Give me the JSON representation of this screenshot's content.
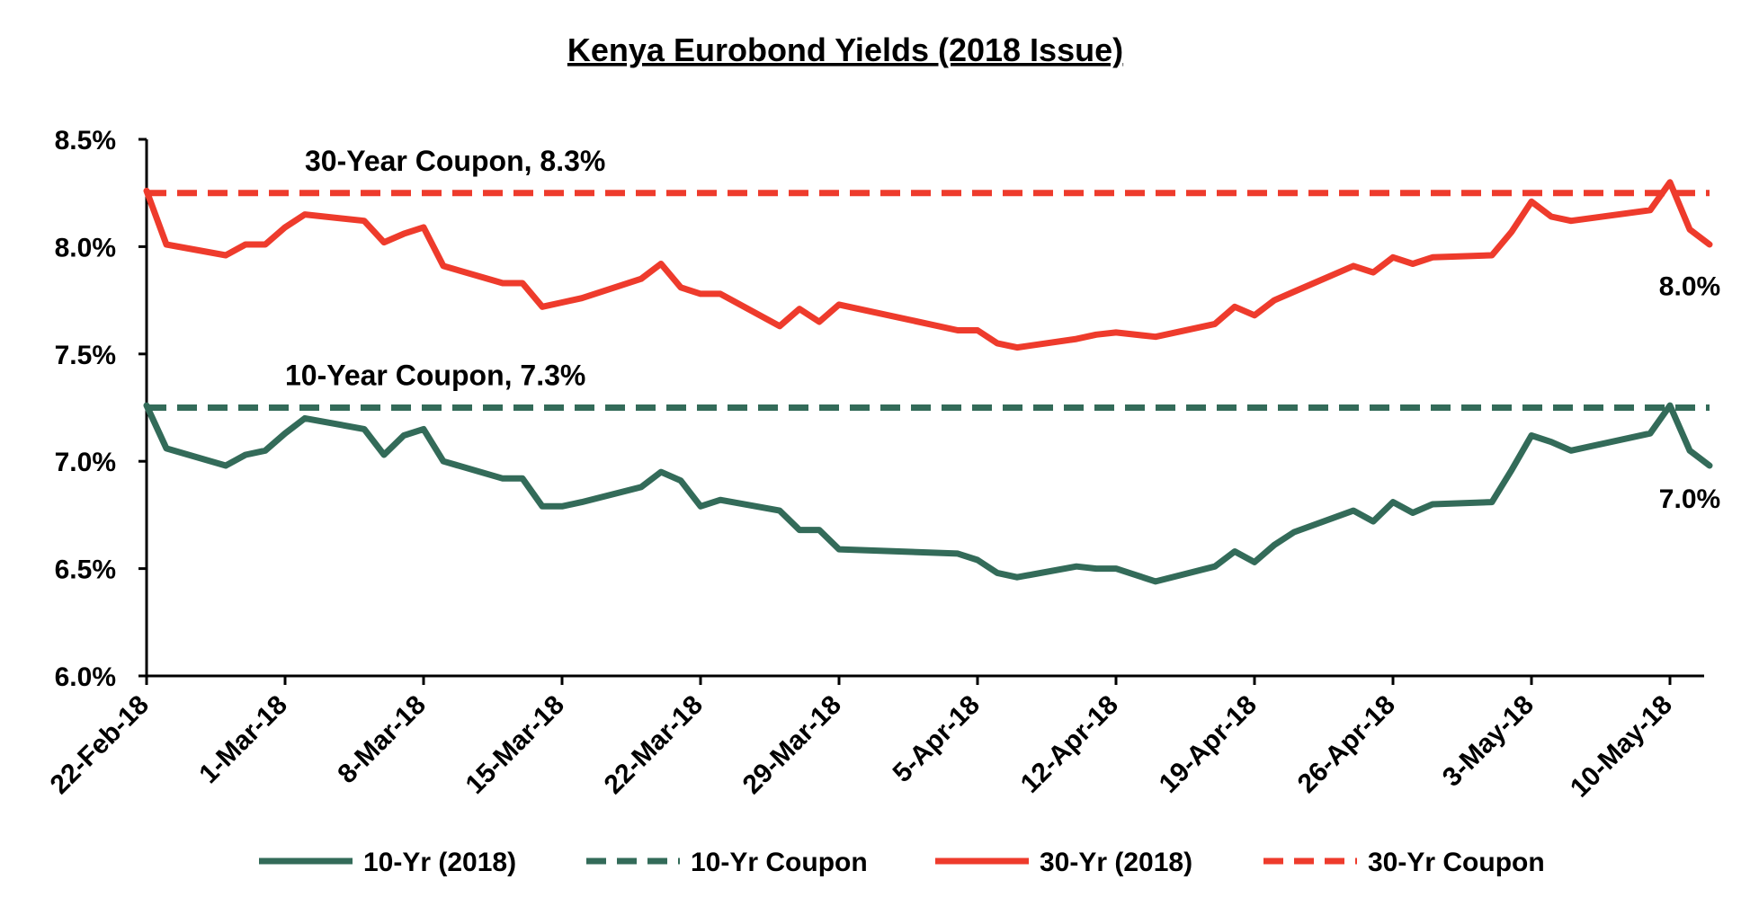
{
  "chart_data": {
    "type": "line",
    "title": "Kenya Eurobond  Yields (2018 Issue)",
    "xlabel": "",
    "ylabel": "",
    "ylim": [
      6.0,
      8.5
    ],
    "yticks": [
      "6.0%",
      "6.5%",
      "7.0%",
      "7.5%",
      "8.0%",
      "8.5%"
    ],
    "ytick_values": [
      6.0,
      6.5,
      7.0,
      7.5,
      8.0,
      8.5
    ],
    "xlim": [
      "2018-02-22",
      "2018-05-11"
    ],
    "xticks": [
      "22-Feb-18",
      "1-Mar-18",
      "8-Mar-18",
      "15-Mar-18",
      "22-Mar-18",
      "29-Mar-18",
      "5-Apr-18",
      "12-Apr-18",
      "19-Apr-18",
      "26-Apr-18",
      "3-May-18",
      "10-May-18"
    ],
    "xtick_dates": [
      "2018-02-22",
      "2018-03-01",
      "2018-03-08",
      "2018-03-15",
      "2018-03-22",
      "2018-03-29",
      "2018-04-05",
      "2018-04-12",
      "2018-04-19",
      "2018-04-26",
      "2018-05-03",
      "2018-05-10"
    ],
    "grid": false,
    "legend_position": "bottom",
    "annotations": [
      {
        "text": "30-Year Coupon, 8.3%",
        "x": "2018-03-02",
        "y": 8.4
      },
      {
        "text": "10-Year Coupon, 7.3%",
        "x": "2018-02-29",
        "y": 7.4
      },
      {
        "text": "8.0%",
        "x": "2018-05-11",
        "y": 7.82
      },
      {
        "text": "7.0%",
        "x": "2018-05-11",
        "y": 6.83
      }
    ],
    "series": [
      {
        "name": "10-Yr (2018)",
        "style": "solid",
        "color": "#336B59",
        "points": [
          [
            "2018-02-22",
            7.26
          ],
          [
            "2018-02-23",
            7.06
          ],
          [
            "2018-02-26",
            6.98
          ],
          [
            "2018-02-27",
            7.03
          ],
          [
            "2018-02-28",
            7.05
          ],
          [
            "2018-03-01",
            7.13
          ],
          [
            "2018-03-02",
            7.2
          ],
          [
            "2018-03-05",
            7.15
          ],
          [
            "2018-03-06",
            7.03
          ],
          [
            "2018-03-07",
            7.12
          ],
          [
            "2018-03-08",
            7.15
          ],
          [
            "2018-03-09",
            7.0
          ],
          [
            "2018-03-12",
            6.92
          ],
          [
            "2018-03-13",
            6.92
          ],
          [
            "2018-03-14",
            6.79
          ],
          [
            "2018-03-15",
            6.79
          ],
          [
            "2018-03-16",
            6.81
          ],
          [
            "2018-03-19",
            6.88
          ],
          [
            "2018-03-20",
            6.95
          ],
          [
            "2018-03-21",
            6.91
          ],
          [
            "2018-03-22",
            6.79
          ],
          [
            "2018-03-23",
            6.82
          ],
          [
            "2018-03-26",
            6.77
          ],
          [
            "2018-03-27",
            6.68
          ],
          [
            "2018-03-28",
            6.68
          ],
          [
            "2018-03-29",
            6.59
          ],
          [
            "2018-04-04",
            6.57
          ],
          [
            "2018-04-05",
            6.54
          ],
          [
            "2018-04-06",
            6.48
          ],
          [
            "2018-04-07",
            6.46
          ],
          [
            "2018-04-10",
            6.51
          ],
          [
            "2018-04-11",
            6.5
          ],
          [
            "2018-04-12",
            6.5
          ],
          [
            "2018-04-14",
            6.44
          ],
          [
            "2018-04-17",
            6.51
          ],
          [
            "2018-04-18",
            6.58
          ],
          [
            "2018-04-19",
            6.53
          ],
          [
            "2018-04-20",
            6.61
          ],
          [
            "2018-04-21",
            6.67
          ],
          [
            "2018-04-24",
            6.77
          ],
          [
            "2018-04-25",
            6.72
          ],
          [
            "2018-04-26",
            6.81
          ],
          [
            "2018-04-27",
            6.76
          ],
          [
            "2018-04-28",
            6.8
          ],
          [
            "2018-05-01",
            6.81
          ],
          [
            "2018-05-02",
            6.96
          ],
          [
            "2018-05-03",
            7.12
          ],
          [
            "2018-05-04",
            7.09
          ],
          [
            "2018-05-05",
            7.05
          ],
          [
            "2018-05-09",
            7.13
          ],
          [
            "2018-05-10",
            7.26
          ],
          [
            "2018-05-11",
            7.05
          ],
          [
            "2018-05-12",
            6.98
          ]
        ]
      },
      {
        "name": "10-Yr Coupon",
        "style": "dashed",
        "color": "#336B59",
        "points": [
          [
            "2018-02-22",
            7.25
          ],
          [
            "2018-05-12",
            7.25
          ]
        ]
      },
      {
        "name": "30-Yr (2018)",
        "style": "solid",
        "color": "#EE3B2C",
        "points": [
          [
            "2018-02-22",
            8.26
          ],
          [
            "2018-02-23",
            8.01
          ],
          [
            "2018-02-26",
            7.96
          ],
          [
            "2018-02-27",
            8.01
          ],
          [
            "2018-02-28",
            8.01
          ],
          [
            "2018-03-01",
            8.09
          ],
          [
            "2018-03-02",
            8.15
          ],
          [
            "2018-03-05",
            8.12
          ],
          [
            "2018-03-06",
            8.02
          ],
          [
            "2018-03-07",
            8.06
          ],
          [
            "2018-03-08",
            8.09
          ],
          [
            "2018-03-09",
            7.91
          ],
          [
            "2018-03-12",
            7.83
          ],
          [
            "2018-03-13",
            7.83
          ],
          [
            "2018-03-14",
            7.72
          ],
          [
            "2018-03-15",
            7.74
          ],
          [
            "2018-03-16",
            7.76
          ],
          [
            "2018-03-19",
            7.85
          ],
          [
            "2018-03-20",
            7.92
          ],
          [
            "2018-03-21",
            7.81
          ],
          [
            "2018-03-22",
            7.78
          ],
          [
            "2018-03-23",
            7.78
          ],
          [
            "2018-03-26",
            7.63
          ],
          [
            "2018-03-27",
            7.71
          ],
          [
            "2018-03-28",
            7.65
          ],
          [
            "2018-03-29",
            7.73
          ],
          [
            "2018-04-04",
            7.61
          ],
          [
            "2018-04-05",
            7.61
          ],
          [
            "2018-04-06",
            7.55
          ],
          [
            "2018-04-07",
            7.53
          ],
          [
            "2018-04-10",
            7.57
          ],
          [
            "2018-04-11",
            7.59
          ],
          [
            "2018-04-12",
            7.6
          ],
          [
            "2018-04-14",
            7.58
          ],
          [
            "2018-04-17",
            7.64
          ],
          [
            "2018-04-18",
            7.72
          ],
          [
            "2018-04-19",
            7.68
          ],
          [
            "2018-04-20",
            7.75
          ],
          [
            "2018-04-21",
            7.79
          ],
          [
            "2018-04-24",
            7.91
          ],
          [
            "2018-04-25",
            7.88
          ],
          [
            "2018-04-26",
            7.95
          ],
          [
            "2018-04-27",
            7.92
          ],
          [
            "2018-04-28",
            7.95
          ],
          [
            "2018-05-01",
            7.96
          ],
          [
            "2018-05-02",
            8.07
          ],
          [
            "2018-05-03",
            8.21
          ],
          [
            "2018-05-04",
            8.14
          ],
          [
            "2018-05-05",
            8.12
          ],
          [
            "2018-05-09",
            8.17
          ],
          [
            "2018-05-10",
            8.3
          ],
          [
            "2018-05-11",
            8.08
          ],
          [
            "2018-05-12",
            8.01
          ]
        ]
      },
      {
        "name": "30-Yr Coupon",
        "style": "dashed",
        "color": "#EE3B2C",
        "points": [
          [
            "2018-02-22",
            8.25
          ],
          [
            "2018-05-12",
            8.25
          ]
        ]
      }
    ]
  }
}
